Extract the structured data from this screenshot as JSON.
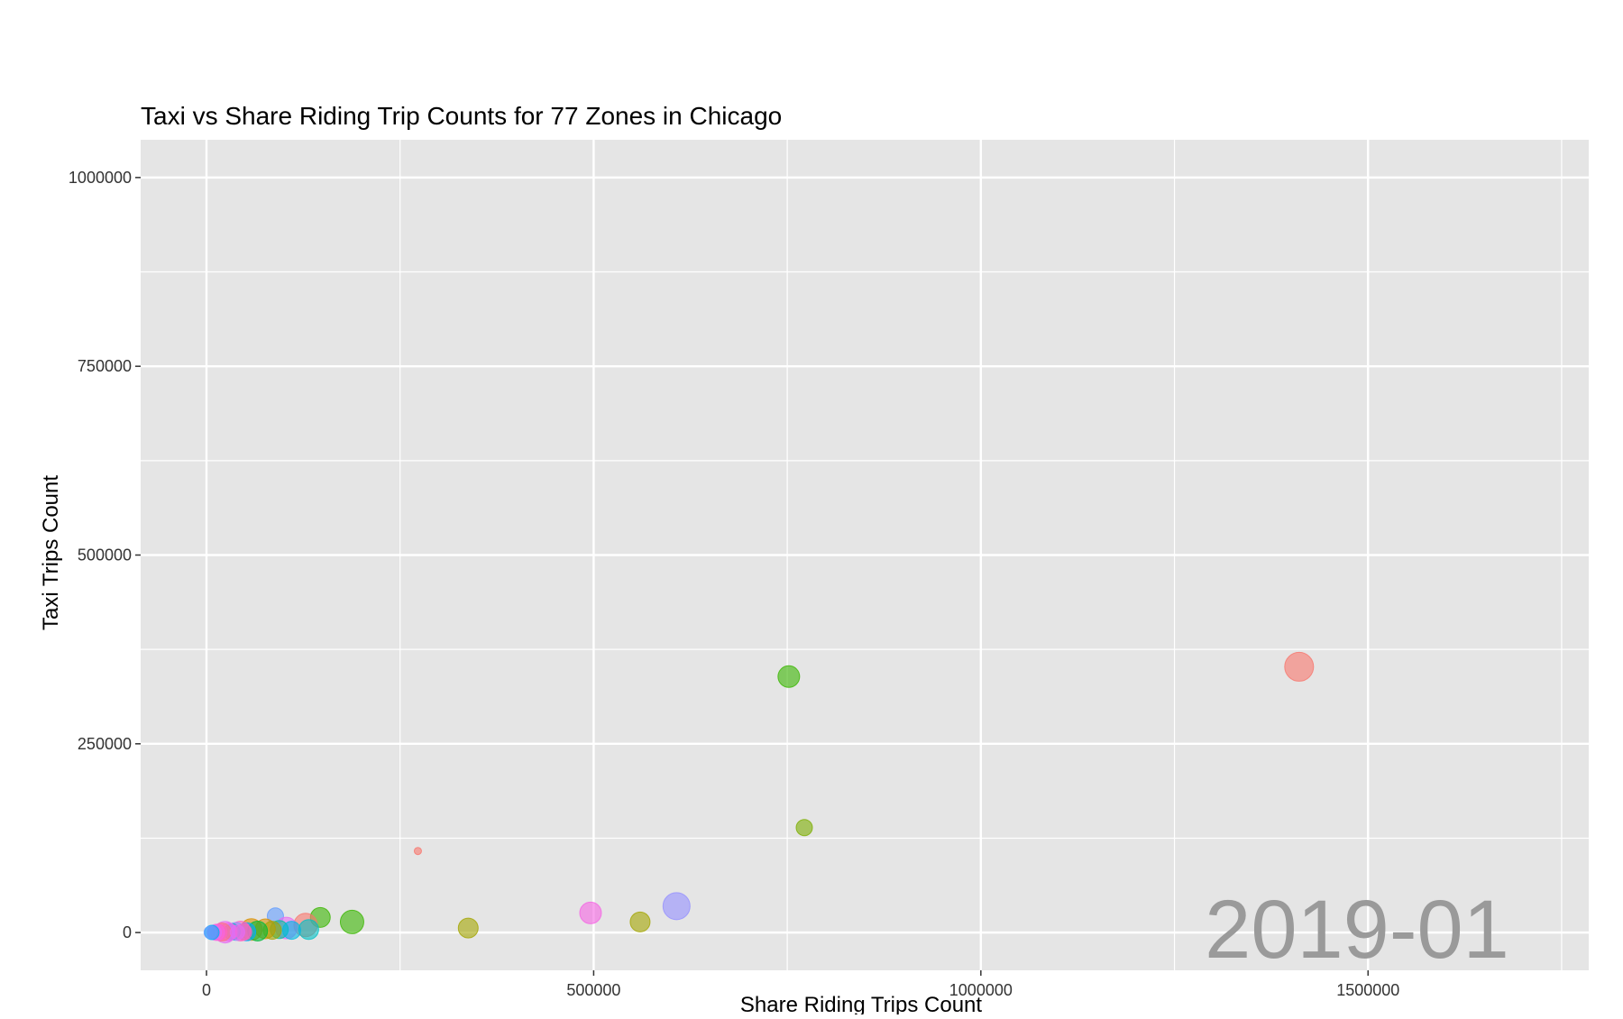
{
  "chart_data": {
    "type": "scatter",
    "title": "Taxi vs Share Riding Trip Counts for 77 Zones in Chicago",
    "xlabel": "Share Riding Trips Count",
    "ylabel": "Taxi Trips Count",
    "frame_label": "2019-01",
    "xlim": [
      -85000,
      1785000
    ],
    "ylim": [
      -50000,
      1050000
    ],
    "x_ticks": [
      0,
      500000,
      1000000,
      1500000
    ],
    "x_tick_labels": [
      "0",
      "500000",
      "1000000",
      "1500000"
    ],
    "y_ticks": [
      0,
      250000,
      500000,
      750000,
      1000000
    ],
    "y_tick_labels": [
      "0",
      "250000",
      "500000",
      "750000",
      "1000000"
    ],
    "grid": true,
    "legend": "none",
    "panel_background": "#e5e5e5",
    "grid_color": "#ffffff",
    "points": [
      {
        "x": 1411000,
        "y": 352000,
        "size": 16,
        "color": "#f8766d"
      },
      {
        "x": 752000,
        "y": 339000,
        "size": 12,
        "color": "#39b600"
      },
      {
        "x": 772000,
        "y": 139000,
        "size": 9,
        "color": "#7cae00"
      },
      {
        "x": 273000,
        "y": 108000,
        "size": 4,
        "color": "#f8766d"
      },
      {
        "x": 607000,
        "y": 35000,
        "size": 15,
        "color": "#9590ff"
      },
      {
        "x": 496000,
        "y": 26000,
        "size": 12,
        "color": "#f564e3"
      },
      {
        "x": 560000,
        "y": 14000,
        "size": 11,
        "color": "#a3a500"
      },
      {
        "x": 338000,
        "y": 6000,
        "size": 11,
        "color": "#a3a500"
      },
      {
        "x": 188000,
        "y": 14000,
        "size": 13,
        "color": "#39b600"
      },
      {
        "x": 147000,
        "y": 20000,
        "size": 11,
        "color": "#39b600"
      },
      {
        "x": 128000,
        "y": 10000,
        "size": 13,
        "color": "#f8766d"
      },
      {
        "x": 132000,
        "y": 4000,
        "size": 11,
        "color": "#00bfc4"
      },
      {
        "x": 89000,
        "y": 22000,
        "size": 9,
        "color": "#619cff"
      },
      {
        "x": 103000,
        "y": 6000,
        "size": 12,
        "color": "#e76bf3"
      },
      {
        "x": 94000,
        "y": 4000,
        "size": 10,
        "color": "#00c19a"
      },
      {
        "x": 110000,
        "y": 3000,
        "size": 10,
        "color": "#00b9e3"
      },
      {
        "x": 76000,
        "y": 5000,
        "size": 11,
        "color": "#d89000"
      },
      {
        "x": 85000,
        "y": 3000,
        "size": 10,
        "color": "#a3a500"
      },
      {
        "x": 58000,
        "y": 4000,
        "size": 12,
        "color": "#d89000"
      },
      {
        "x": 66000,
        "y": 2000,
        "size": 11,
        "color": "#00ba38"
      },
      {
        "x": 52000,
        "y": 1000,
        "size": 10,
        "color": "#00a9ff"
      },
      {
        "x": 44000,
        "y": 2000,
        "size": 11,
        "color": "#ff61c3"
      },
      {
        "x": 38000,
        "y": 1500,
        "size": 10,
        "color": "#9590ff"
      },
      {
        "x": 33000,
        "y": 1000,
        "size": 9,
        "color": "#00bfc4"
      },
      {
        "x": 28000,
        "y": 800,
        "size": 10,
        "color": "#f564e3"
      },
      {
        "x": 24000,
        "y": 500,
        "size": 12,
        "color": "#e76bf3"
      },
      {
        "x": 20000,
        "y": 700,
        "size": 10,
        "color": "#fc717f"
      },
      {
        "x": 16000,
        "y": 400,
        "size": 9,
        "color": "#ff61c3"
      },
      {
        "x": 13000,
        "y": 300,
        "size": 9,
        "color": "#f564e3"
      },
      {
        "x": 10000,
        "y": 200,
        "size": 8,
        "color": "#e76bf3"
      },
      {
        "x": 7000,
        "y": 150,
        "size": 8,
        "color": "#00b0f6"
      },
      {
        "x": 5000,
        "y": 100,
        "size": 7,
        "color": "#619cff"
      },
      {
        "x": 48000,
        "y": 600,
        "size": 9,
        "color": "#ff62bc"
      },
      {
        "x": 40000,
        "y": 300,
        "size": 8,
        "color": "#e76bf3"
      }
    ]
  }
}
